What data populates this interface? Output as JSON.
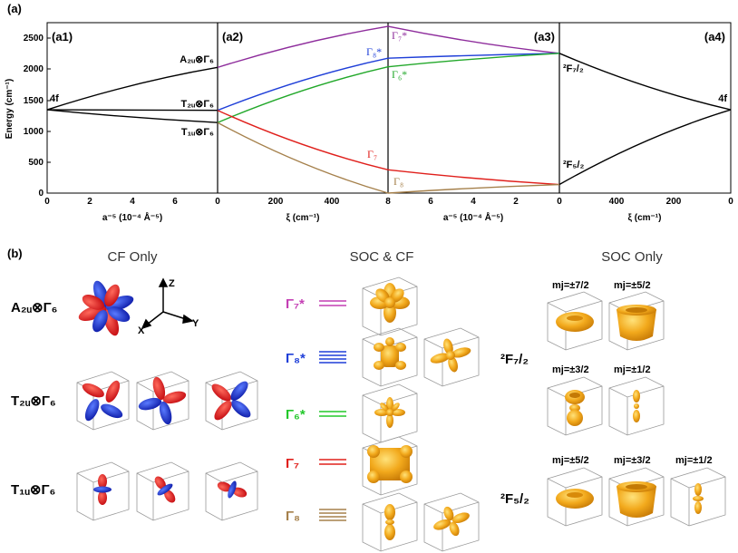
{
  "colors": {
    "gamma7star": "#8e2d9c",
    "gamma8star": "#1f3fd8",
    "gamma6star": "#22a82a",
    "gamma7": "#e0201c",
    "gamma8": "#a5804b",
    "orbital_gold": "#f2a91c",
    "orbital_red": "#e3121a",
    "orbital_blue": "#1628d6"
  },
  "panel_a": {
    "label": "(a)",
    "y_axis_label": "Energy (cm⁻¹)",
    "subpanels": [
      {
        "id": "a1",
        "label": "(a1)",
        "xlabel": "a⁻⁵ (10⁻⁴ Å⁻⁵)",
        "ticks": [
          "0",
          "2",
          "4",
          "6",
          "0"
        ]
      },
      {
        "id": "a2",
        "label": "(a2)",
        "xlabel": "ξ (cm⁻¹)",
        "ticks": [
          "0",
          "200",
          "400",
          "8"
        ]
      },
      {
        "id": "a3",
        "label": "(a3)",
        "xlabel": "a⁻⁵ (10⁻⁴ Å⁻⁵)",
        "ticks": [
          "6",
          "4",
          "2",
          "0"
        ]
      },
      {
        "id": "a4",
        "label": "(a4)",
        "xlabel": "ξ (cm⁻¹)",
        "ticks": [
          "400",
          "200",
          "0"
        ]
      }
    ],
    "y_ticks": [
      "0",
      "500",
      "1000",
      "1500",
      "2000",
      "2500"
    ],
    "left_levels": [
      "4f",
      "A₂ᵤ⊗Γ₆",
      "T₂ᵤ⊗Γ₆",
      "T₁ᵤ⊗Γ₆"
    ],
    "mid_levels": [
      "Γ₇*",
      "Γ₈*",
      "Γ₆*",
      "Γ₇",
      "Γ₈"
    ],
    "right_levels": [
      "²F₇/₂",
      "²F₅/₂",
      "4f"
    ]
  },
  "chart_data": {
    "type": "line",
    "title": "",
    "ylabel": "Energy (cm⁻¹)",
    "ylim": [
      0,
      2780
    ],
    "series": [
      {
        "name": "A2u⊗Γ6 (a1)",
        "x": [
          0,
          1
        ],
        "values": [
          1360,
          2050
        ]
      },
      {
        "name": "T2u⊗Γ6 (a1)",
        "x": [
          0,
          1
        ],
        "values": [
          1360,
          1350
        ]
      },
      {
        "name": "T1u⊗Γ6 (a1)",
        "x": [
          0,
          1
        ],
        "values": [
          1360,
          1150
        ]
      },
      {
        "name": "Γ7* (a2)",
        "x": [
          0,
          1
        ],
        "values": [
          2050,
          2720
        ]
      },
      {
        "name": "Γ8* (a2)",
        "x": [
          0,
          1
        ],
        "values": [
          1350,
          2200
        ]
      },
      {
        "name": "Γ6* (a2)",
        "x": [
          0,
          1
        ],
        "values": [
          1150,
          2060
        ]
      },
      {
        "name": "Γ7 (a2)",
        "x": [
          0,
          1
        ],
        "values": [
          1350,
          380
        ]
      },
      {
        "name": "Γ8 (a2)",
        "x": [
          0,
          1
        ],
        "values": [
          1150,
          0
        ]
      },
      {
        "name": "Γ7* (a3)",
        "x": [
          0,
          1
        ],
        "values": [
          2720,
          2280
        ]
      },
      {
        "name": "Γ8* (a3)",
        "x": [
          0,
          1
        ],
        "values": [
          2200,
          2280
        ]
      },
      {
        "name": "Γ6* (a3)",
        "x": [
          0,
          1
        ],
        "values": [
          2060,
          2280
        ]
      },
      {
        "name": "Γ7 (a3)",
        "x": [
          0,
          1
        ],
        "values": [
          380,
          140
        ]
      },
      {
        "name": "Γ8 (a3)",
        "x": [
          0,
          1
        ],
        "values": [
          0,
          140
        ]
      },
      {
        "name": "2F7/2 (a4)",
        "x": [
          0,
          1
        ],
        "values": [
          2280,
          1360
        ]
      },
      {
        "name": "2F5/2 (a4)",
        "x": [
          0,
          1
        ],
        "values": [
          140,
          1360
        ]
      }
    ]
  },
  "panel_b": {
    "label": "(b)",
    "col_titles": [
      "CF Only",
      "SOC & CF",
      "SOC Only"
    ],
    "cf_rows": [
      "A₂ᵤ⊗Γ₆",
      "T₂ᵤ⊗Γ₆",
      "T₁ᵤ⊗Γ₆"
    ],
    "axes_labels": [
      "Z",
      "X",
      "Y"
    ],
    "soccf_rows": [
      "Γ₇*",
      "Γ₈*",
      "Γ₆*",
      "Γ₇",
      "Γ₈"
    ],
    "soc_groups": [
      "²F₇/₂",
      "²F₅/₂"
    ],
    "soc_mj": [
      "mj=±7/2",
      "mj=±5/2",
      "mj=±3/2",
      "mj=±1/2",
      "mj=±5/2",
      "mj=±3/2",
      "mj=±1/2"
    ]
  }
}
